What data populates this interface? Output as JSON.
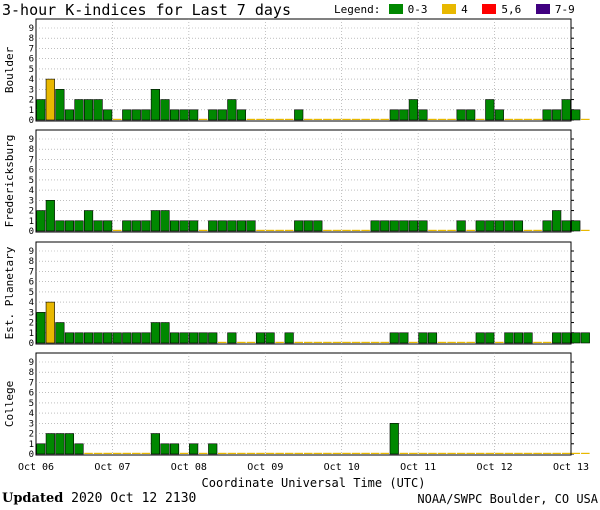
{
  "title": "3-hour K-indices for Last 7 days",
  "legend": {
    "label": "Legend:",
    "items": [
      {
        "text": "0-3",
        "color": "#008800"
      },
      {
        "text": "4",
        "color": "#e8b800"
      },
      {
        "text": "5,6",
        "color": "#ff0000"
      },
      {
        "text": "7-9",
        "color": "#400080"
      }
    ]
  },
  "footer": {
    "updated_label": "Updated",
    "updated_value": "2020 Oct 12 2130",
    "credit": "NOAA/SWPC Boulder, CO USA"
  },
  "chart_data": {
    "type": "bar",
    "xlabel": "Coordinate Universal Time (UTC)",
    "x_ticks": [
      "Oct 06",
      "Oct 07",
      "Oct 08",
      "Oct 09",
      "Oct 10",
      "Oct 11",
      "Oct 12",
      "Oct 13"
    ],
    "y_ticks": [
      "0",
      "1",
      "2",
      "3",
      "4",
      "5",
      "6",
      "7",
      "8",
      "9"
    ],
    "ylim": [
      0,
      9
    ],
    "interval_hours": 3,
    "colors": {
      "0-3": "#008800",
      "4": "#e8b800",
      "5,6": "#ff0000",
      "7-9": "#400080",
      "grid": "#999999"
    },
    "panels": [
      {
        "ylabel": "Boulder",
        "values": [
          2,
          4,
          3,
          1,
          2,
          2,
          2,
          1,
          0,
          1,
          1,
          1,
          3,
          2,
          1,
          1,
          1,
          0,
          1,
          1,
          2,
          1,
          0,
          0,
          0,
          0,
          0,
          1,
          0,
          0,
          0,
          0,
          0,
          0,
          0,
          0,
          0,
          1,
          1,
          2,
          1,
          0,
          0,
          0,
          1,
          1,
          0,
          2,
          1,
          0,
          0,
          0,
          0,
          1,
          1,
          2,
          1,
          0
        ]
      },
      {
        "ylabel": "Fredericksburg",
        "values": [
          2,
          3,
          1,
          1,
          1,
          2,
          1,
          1,
          0,
          1,
          1,
          1,
          2,
          2,
          1,
          1,
          1,
          0,
          1,
          1,
          1,
          1,
          1,
          0,
          0,
          0,
          0,
          1,
          1,
          1,
          0,
          0,
          0,
          0,
          0,
          1,
          1,
          1,
          1,
          1,
          1,
          0,
          0,
          0,
          1,
          0,
          1,
          1,
          1,
          1,
          1,
          0,
          0,
          1,
          2,
          1,
          1,
          0
        ]
      },
      {
        "ylabel": "Est. Planetary",
        "values": [
          3,
          4,
          2,
          1,
          1,
          1,
          1,
          1,
          1,
          1,
          1,
          1,
          2,
          2,
          1,
          1,
          1,
          1,
          1,
          0,
          1,
          0,
          0,
          1,
          1,
          0,
          1,
          0,
          0,
          0,
          0,
          0,
          0,
          0,
          0,
          0,
          0,
          1,
          1,
          0,
          1,
          1,
          0,
          0,
          0,
          0,
          1,
          1,
          0,
          1,
          1,
          1,
          0,
          0,
          1,
          1,
          1,
          1
        ]
      },
      {
        "ylabel": "College",
        "values": [
          1,
          2,
          2,
          2,
          1,
          0,
          0,
          0,
          0,
          0,
          0,
          0,
          2,
          1,
          1,
          0,
          1,
          0,
          1,
          0,
          0,
          0,
          0,
          0,
          0,
          0,
          0,
          0,
          0,
          0,
          0,
          0,
          0,
          0,
          0,
          0,
          0,
          3,
          0,
          0,
          0,
          0,
          0,
          0,
          0,
          0,
          0,
          0,
          0,
          0,
          0,
          0,
          0,
          0,
          0,
          0,
          0,
          0
        ]
      }
    ]
  }
}
